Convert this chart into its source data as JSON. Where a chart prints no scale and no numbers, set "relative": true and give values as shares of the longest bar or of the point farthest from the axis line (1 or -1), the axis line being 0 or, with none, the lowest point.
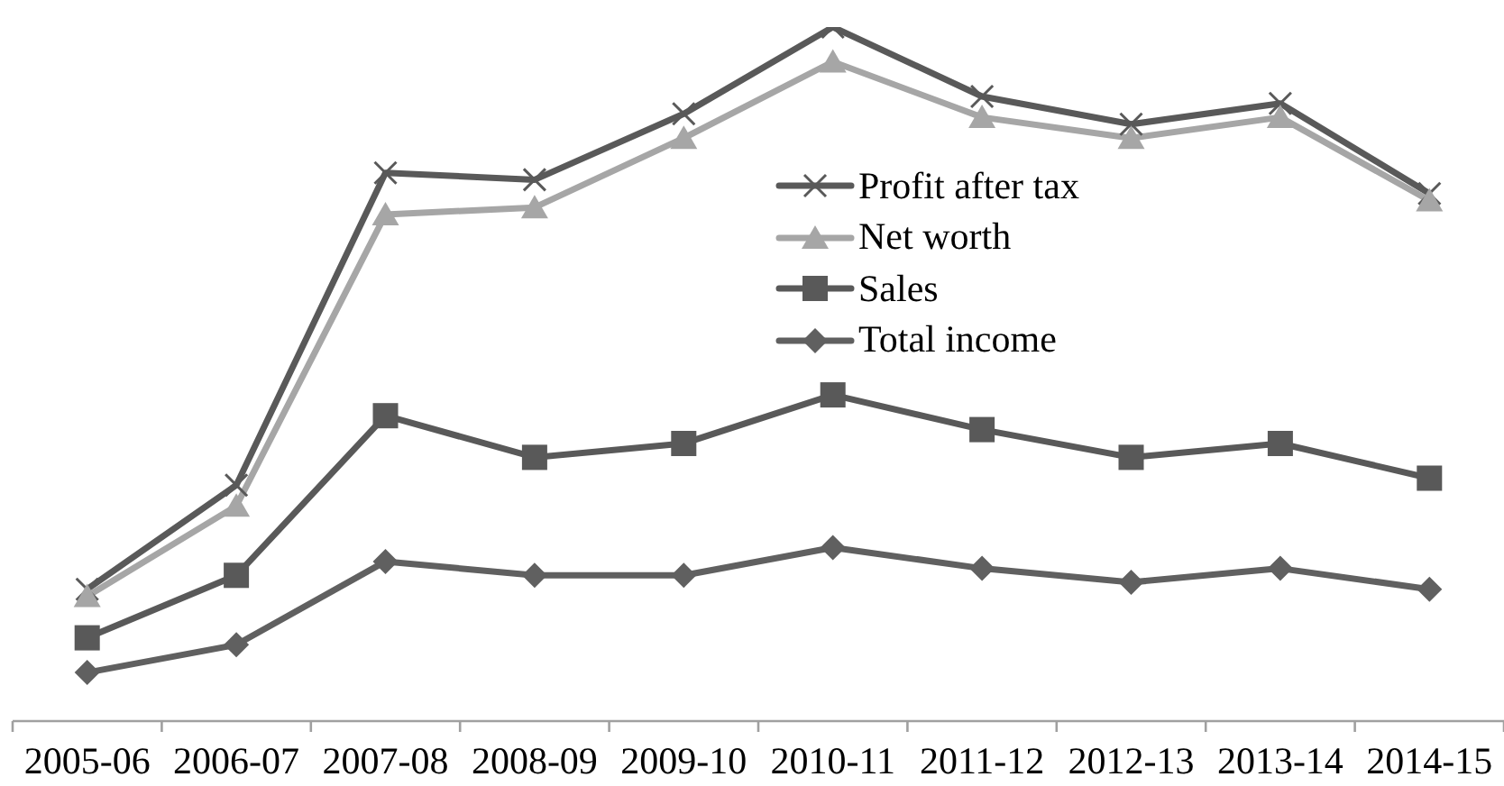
{
  "chart_data": {
    "type": "line",
    "relative": true,
    "legend": "top",
    "line_style": "solid",
    "categories": [
      "2005-06",
      "2006-07",
      "2007-08",
      "2008-09",
      "2009-10",
      "2010-11",
      "2011-12",
      "2012-13",
      "2013-14",
      "2014-15"
    ],
    "series": [
      {
        "name": "Profit after tax",
        "color": "#595959",
        "marker": "cross",
        "values": [
          0.19,
          0.34,
          0.79,
          0.78,
          0.875,
          1.0,
          0.9,
          0.86,
          0.89,
          0.76
        ]
      },
      {
        "name": "Net worth",
        "color": "#a6a6a6",
        "marker": "triangle",
        "values": [
          0.18,
          0.31,
          0.73,
          0.74,
          0.84,
          0.95,
          0.87,
          0.84,
          0.87,
          0.75
        ]
      },
      {
        "name": "Sales",
        "color": "#595959",
        "marker": "square",
        "values": [
          0.12,
          0.21,
          0.44,
          0.38,
          0.4,
          0.47,
          0.42,
          0.38,
          0.4,
          0.35
        ]
      },
      {
        "name": "Total income",
        "color": "#606060",
        "marker": "diamond",
        "values": [
          0.07,
          0.11,
          0.23,
          0.21,
          0.21,
          0.25,
          0.22,
          0.2,
          0.22,
          0.19
        ]
      }
    ]
  }
}
